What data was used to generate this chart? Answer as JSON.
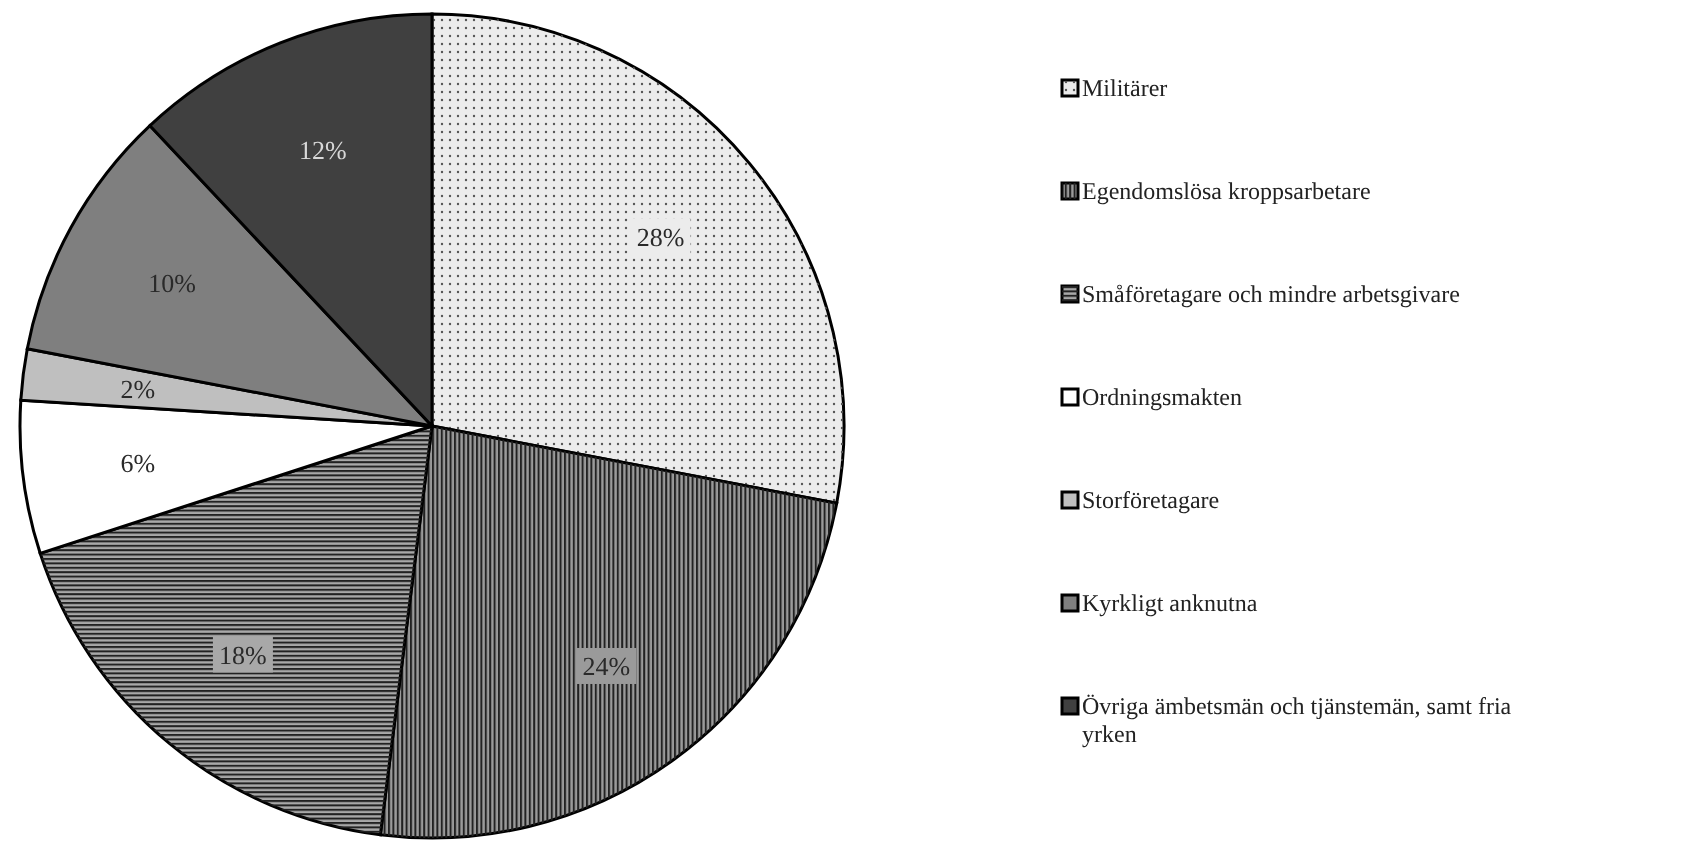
{
  "chart_data": {
    "type": "pie",
    "categories": [
      "Militärer",
      "Egendomslösa kroppsarbetare",
      "Småföretagare och mindre arbetsgivare",
      "Ordningsmakten",
      "Storföretagare",
      "Kyrkligt anknutna",
      "Övriga ämbetsmän och tjänstemän, samt fria yrken"
    ],
    "values": [
      28,
      24,
      18,
      6,
      2,
      10,
      12
    ],
    "value_labels": [
      "28%",
      "24%",
      "18%",
      "6%",
      "2%",
      "10%",
      "12%"
    ],
    "colors": [
      "#ececec",
      "#9a9a9a",
      "#a8a8a8",
      "#ffffff",
      "#bfbfbf",
      "#7f7f7f",
      "#404040"
    ],
    "legend": "right"
  }
}
